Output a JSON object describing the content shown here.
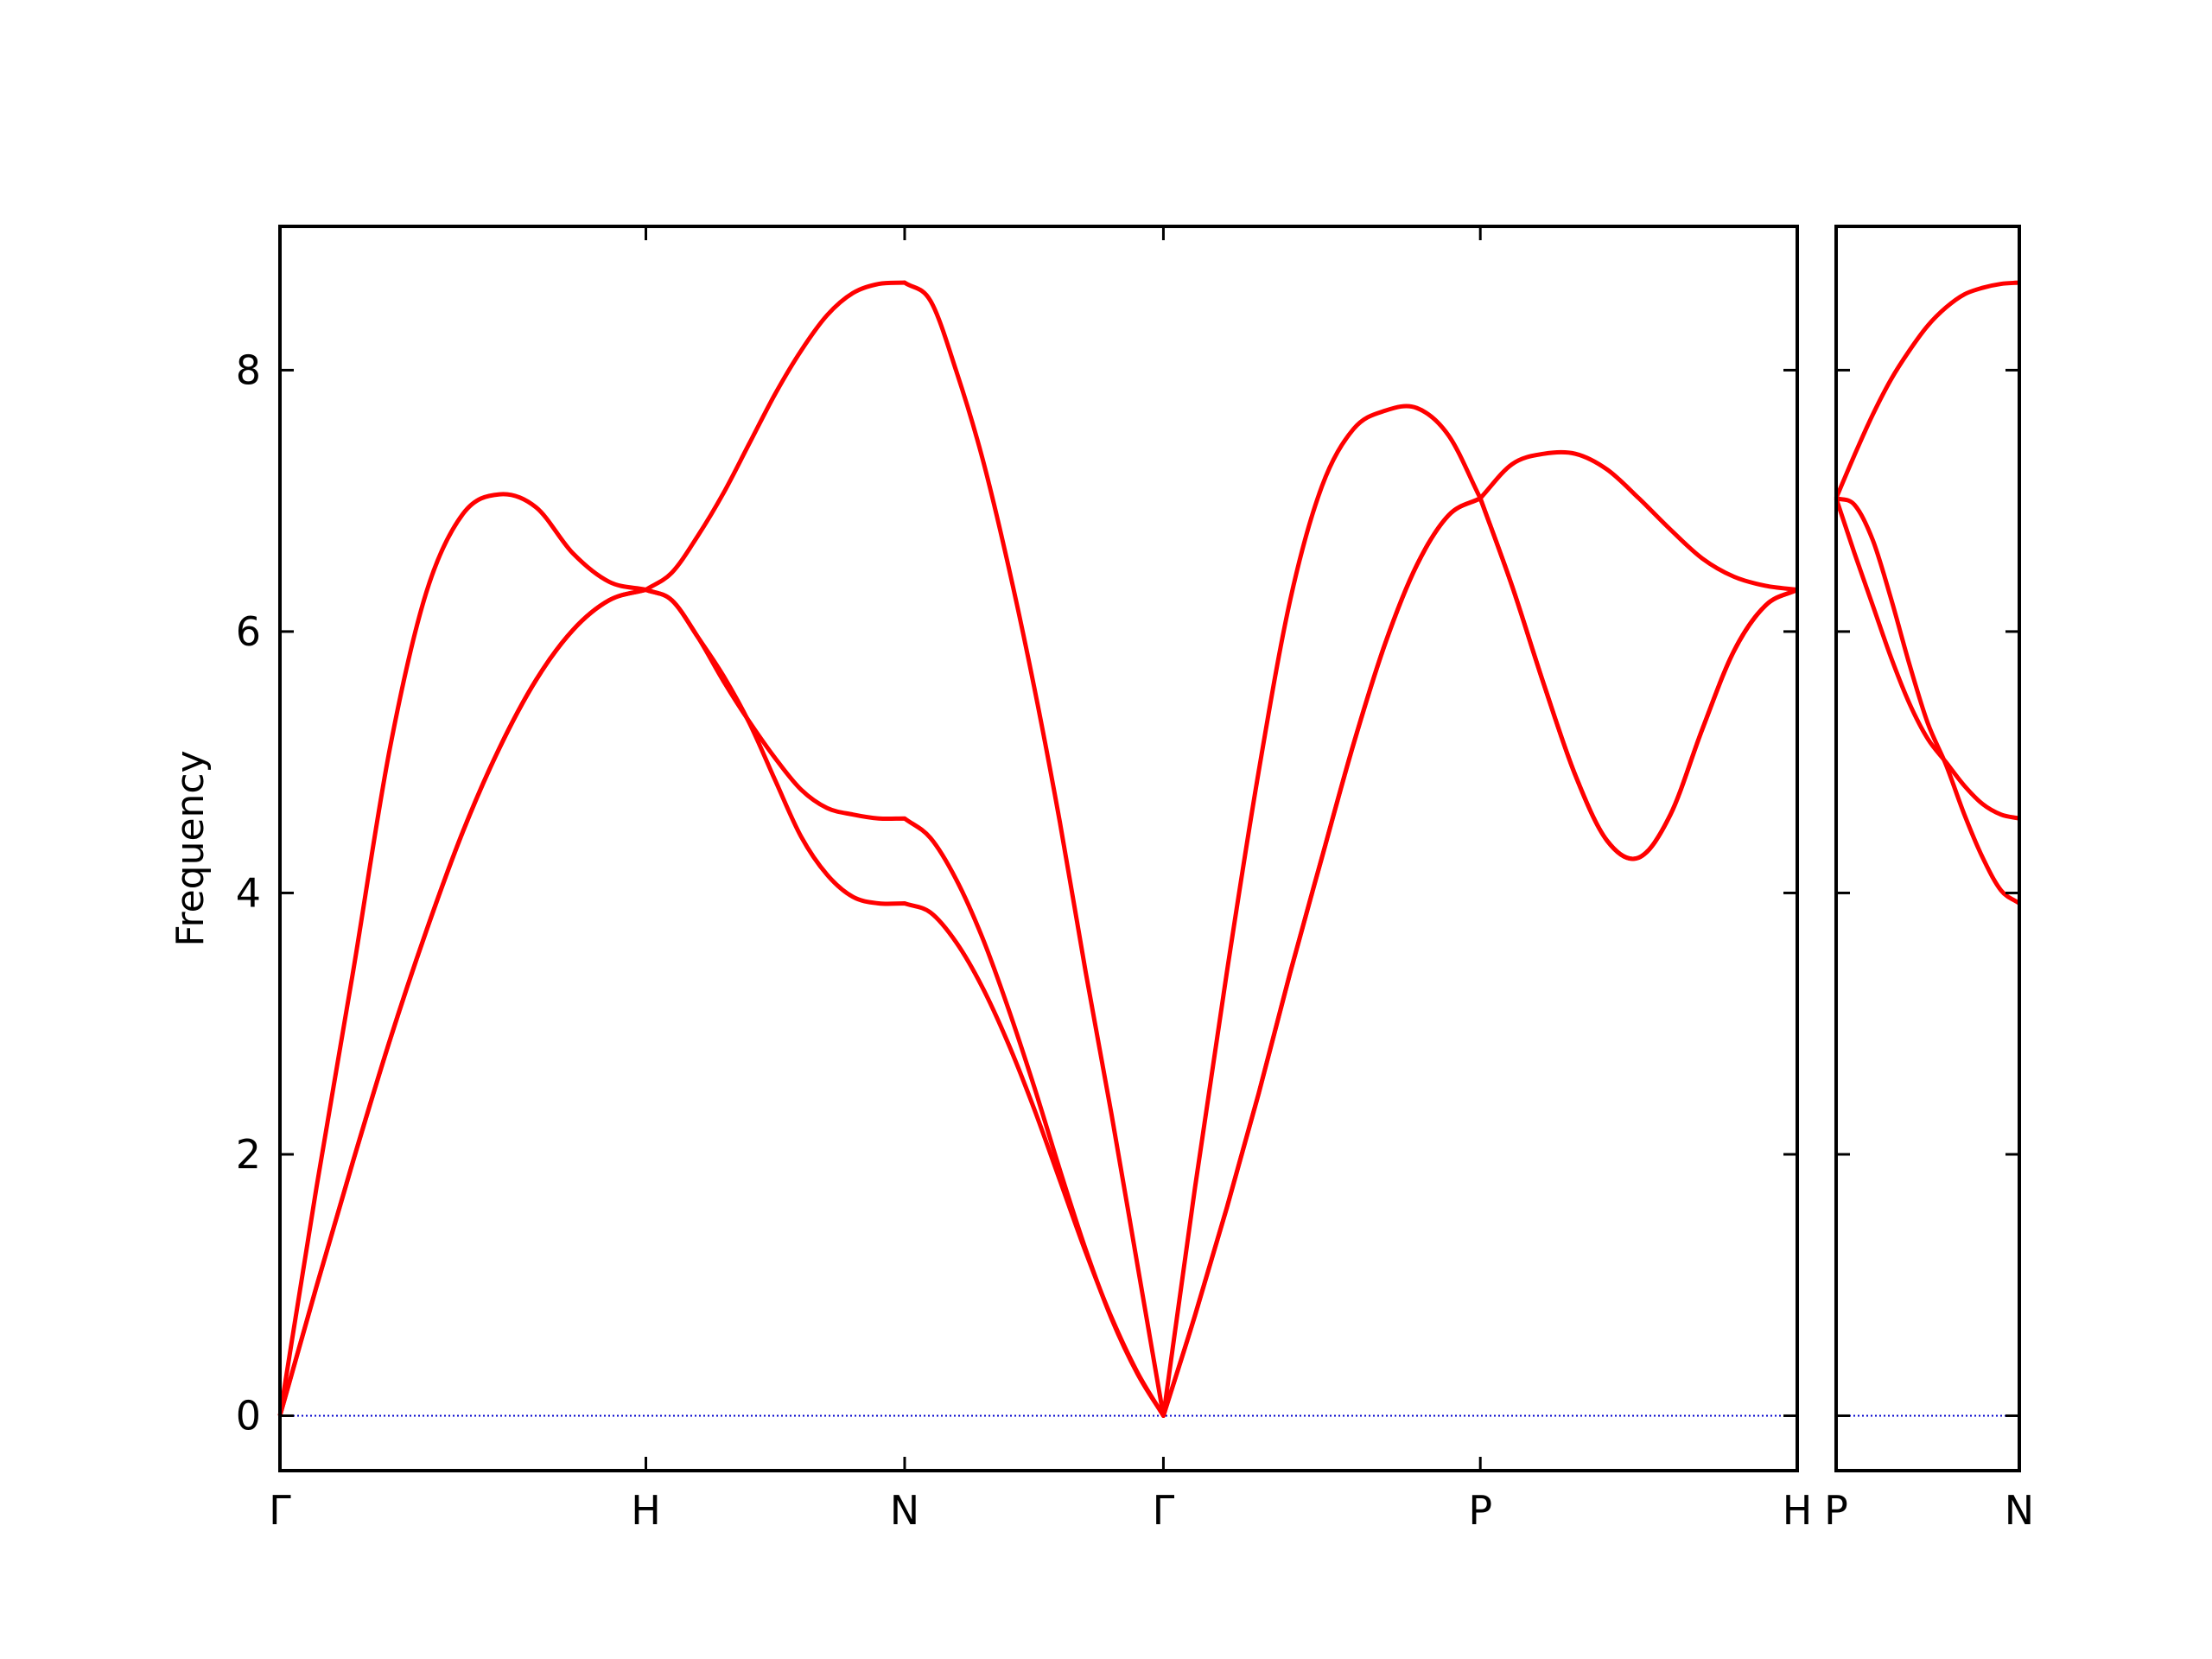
{
  "chart_data": [
    {
      "type": "line",
      "ylabel": "Frequency",
      "x": [
        0,
        0.1,
        0.2,
        0.3,
        0.4,
        0.5,
        0.6,
        0.7,
        0.8,
        0.9,
        1,
        1.0707,
        1.1414,
        1.2121,
        1.2828,
        1.3536,
        1.4243,
        1.495,
        1.5657,
        1.6364,
        1.7071,
        1.7778,
        1.8485,
        1.9192,
        1.9899,
        2.0607,
        2.1314,
        2.2021,
        2.2728,
        2.3435,
        2.4142,
        2.5008,
        2.5874,
        2.674,
        2.7606,
        2.8472,
        2.9338,
        3.0204,
        3.107,
        3.1936,
        3.2802,
        3.3668,
        3.4534,
        3.54,
        3.6266,
        3.7132,
        3.7999,
        3.8865,
        3.9731,
        4.0597,
        4.1463
      ],
      "series": [
        {
          "color": "#ff0000",
          "values": [
            0,
            0.99,
            1.95,
            2.87,
            3.71,
            4.47,
            5.11,
            5.63,
            6.01,
            6.24,
            6.32,
            6.24,
            5.96,
            5.66,
            5.3,
            4.86,
            4.43,
            4.14,
            3.97,
            3.92,
            3.92,
            3.85,
            3.62,
            3.28,
            2.85,
            2.35,
            1.8,
            1.25,
            0.75,
            0.33,
            0,
            0.77,
            1.59,
            2.46,
            3.39,
            4.27,
            5.14,
            5.91,
            6.51,
            6.89,
            7.02,
            6.35,
            5.6,
            4.9,
            4.4,
            4.27,
            4.6,
            5.25,
            5.85,
            6.2,
            6.32
          ]
        },
        {
          "color": "#ff0000",
          "values": [
            0,
            0.99,
            1.95,
            2.87,
            3.71,
            4.47,
            5.11,
            5.63,
            6.01,
            6.24,
            6.32,
            6.24,
            5.96,
            5.62,
            5.31,
            5.03,
            4.79,
            4.65,
            4.6,
            4.57,
            4.57,
            4.42,
            4.1,
            3.66,
            3.12,
            2.52,
            1.88,
            1.27,
            0.74,
            0.32,
            0,
            0.77,
            1.59,
            2.46,
            3.39,
            4.27,
            5.14,
            5.91,
            6.51,
            6.89,
            7.02,
            6.35,
            5.6,
            4.9,
            4.4,
            4.27,
            4.6,
            5.25,
            5.85,
            6.2,
            6.32
          ]
        },
        {
          "color": "#ff0000",
          "values": [
            0,
            1.75,
            3.4,
            5.1,
            6.3,
            6.9,
            7.05,
            6.95,
            6.6,
            6.38,
            6.32,
            6.45,
            6.73,
            7.06,
            7.44,
            7.82,
            8.15,
            8.42,
            8.59,
            8.66,
            8.67,
            8.53,
            7.99,
            7.33,
            6.51,
            5.58,
            4.54,
            3.39,
            2.3,
            1.15,
            0,
            1.75,
            3.39,
            4.92,
            6.24,
            7.11,
            7.55,
            7.69,
            7.71,
            7.5,
            7.02,
            7.28,
            7.36,
            7.36,
            7.24,
            7.02,
            6.78,
            6.56,
            6.42,
            6.35,
            6.32
          ]
        }
      ],
      "xlim": [
        0,
        4.1463
      ],
      "xticks": [
        {
          "value": 0,
          "label": "Γ"
        },
        {
          "value": 1,
          "label": "H"
        },
        {
          "value": 1.7071,
          "label": "N"
        },
        {
          "value": 2.4142,
          "label": "Γ"
        },
        {
          "value": 3.2802,
          "label": "P"
        },
        {
          "value": 4.1463,
          "label": "H"
        }
      ],
      "ylim": [
        -0.42,
        9.1
      ],
      "yticks": [
        0,
        2,
        4,
        6,
        8
      ],
      "ytick_labels": true,
      "hline": 0,
      "hline_color": "#0000cc"
    },
    {
      "type": "line",
      "x": [
        0,
        0.05,
        0.1,
        0.15,
        0.2,
        0.25,
        0.3,
        0.35,
        0.4,
        0.45,
        0.5
      ],
      "series": [
        {
          "color": "#ff0000",
          "values": [
            7.02,
            6.97,
            6.7,
            6.25,
            5.75,
            5.3,
            4.98,
            4.6,
            4.27,
            4.02,
            3.92
          ]
        },
        {
          "color": "#ff0000",
          "values": [
            7.02,
            6.6,
            6.2,
            5.8,
            5.45,
            5.18,
            5.0,
            4.82,
            4.68,
            4.6,
            4.57
          ]
        },
        {
          "color": "#ff0000",
          "values": [
            7.02,
            7.35,
            7.66,
            7.93,
            8.15,
            8.34,
            8.48,
            8.58,
            8.63,
            8.66,
            8.67
          ]
        }
      ],
      "xlim": [
        0,
        0.5
      ],
      "xticks": [
        {
          "value": 0,
          "label": "P"
        },
        {
          "value": 0.5,
          "label": "N"
        }
      ],
      "ylim": [
        -0.42,
        9.1
      ],
      "yticks": [
        0,
        2,
        4,
        6,
        8
      ],
      "ytick_labels": false,
      "hline": 0,
      "hline_color": "#0000cc"
    }
  ]
}
